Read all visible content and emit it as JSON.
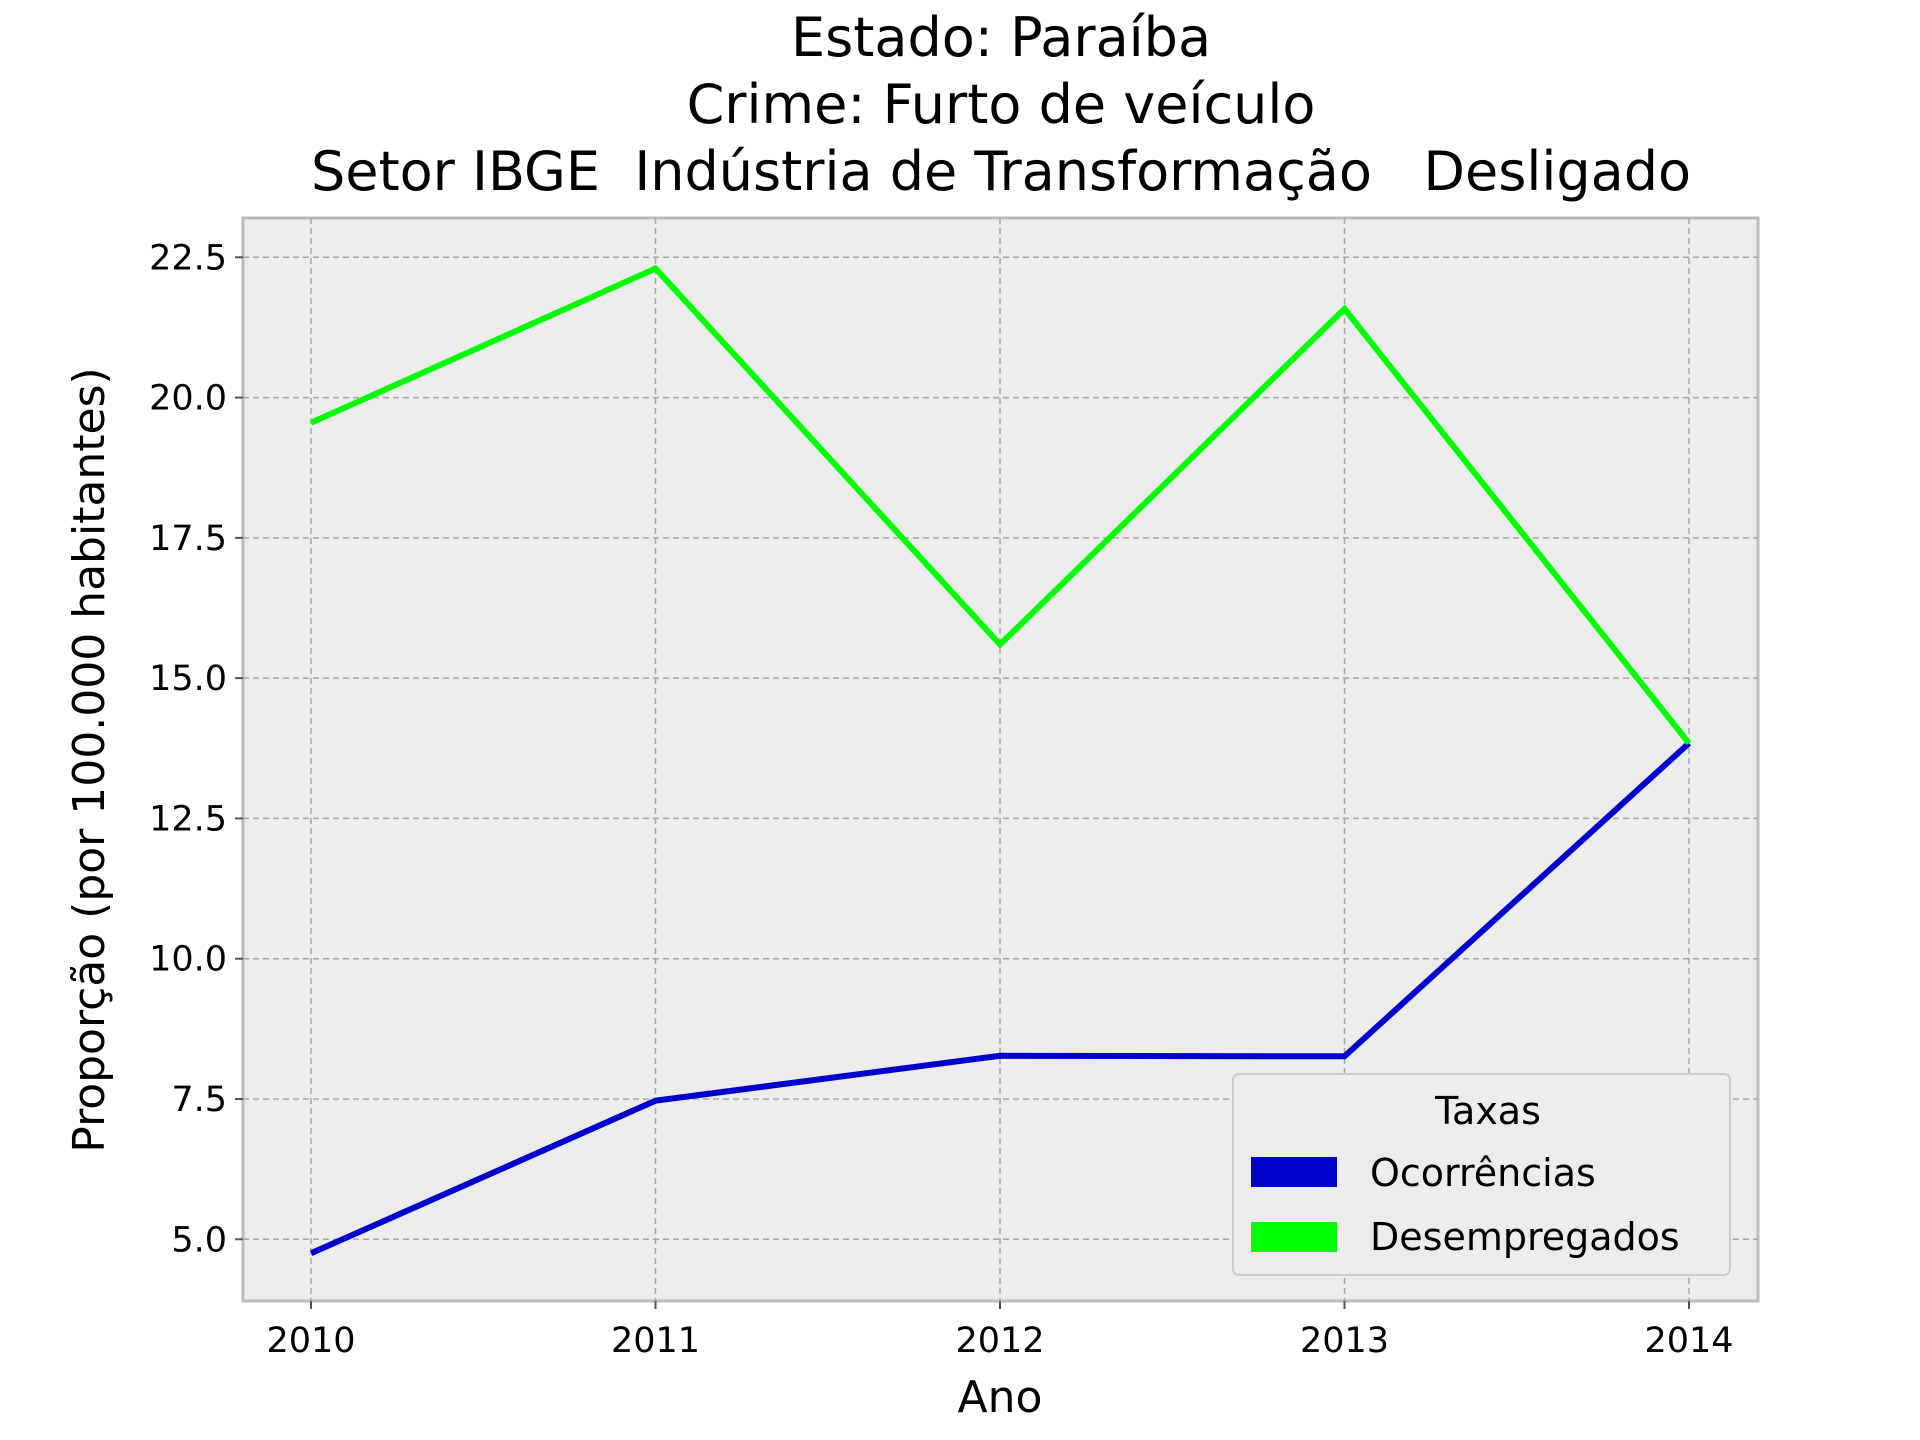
{
  "chart_data": {
    "type": "line",
    "title_lines": [
      "Estado: Paraíba",
      "Crime: Furto de veículo",
      "Setor IBGE  Indústria de Transformação   Desligado"
    ],
    "xlabel": "Ano",
    "ylabel": "Proporção (por 100.000 habitantes)",
    "x": [
      "2010",
      "2011",
      "2012",
      "2013",
      "2014"
    ],
    "y_ticks": [
      "5.0",
      "7.5",
      "10.0",
      "12.5",
      "15.0",
      "17.5",
      "20.0",
      "22.5"
    ],
    "ylim": [
      3.9,
      23.2
    ],
    "grid": true,
    "legend": {
      "title": "Taxas",
      "position": "lower-right"
    },
    "series": [
      {
        "name": "Ocorrências",
        "color": "#0000cc",
        "values": [
          4.75,
          7.47,
          8.27,
          8.26,
          13.84
        ]
      },
      {
        "name": "Desempregados",
        "color": "#00ff00",
        "values": [
          19.55,
          22.3,
          15.6,
          21.58,
          13.84
        ]
      }
    ]
  }
}
